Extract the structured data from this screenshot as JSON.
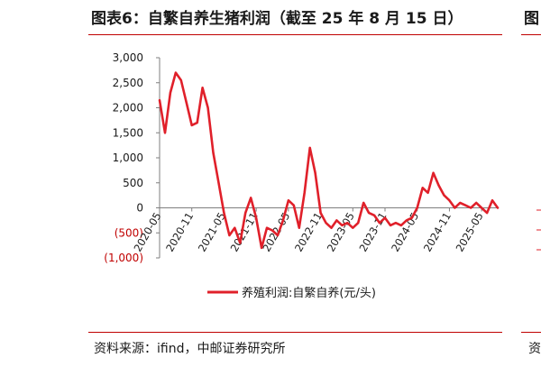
{
  "title": "图表6：自繁自养生猪利润（截至 25 年 8 月 15 日）",
  "next_title_fragment": "图",
  "source": "资料来源：ifind，中邮证券研究所",
  "next_source_fragment": "资",
  "colors": {
    "series": "#e0202a",
    "accent_rule": "#c00000",
    "negative_label": "#c00000",
    "axis": "#7f7f7f",
    "text": "#1a1a1a"
  },
  "chart_data": {
    "type": "line",
    "ylim": [
      -1000,
      3000
    ],
    "grid": false,
    "legend": "bottom",
    "y_ticks": [
      {
        "value": 3000,
        "label": "3,000"
      },
      {
        "value": 2500,
        "label": "2,500"
      },
      {
        "value": 2000,
        "label": "2,000"
      },
      {
        "value": 1500,
        "label": "1,500"
      },
      {
        "value": 1000,
        "label": "1,000"
      },
      {
        "value": 500,
        "label": "500"
      },
      {
        "value": 0,
        "label": "0"
      },
      {
        "value": -500,
        "label": "(500)"
      },
      {
        "value": -1000,
        "label": "(1,000)"
      }
    ],
    "x_ticks": [
      "2020-05",
      "2020-11",
      "2021-05",
      "2021-11",
      "2022-05",
      "2022-11",
      "2023-05",
      "2023-11",
      "2024-05",
      "2024-11",
      "2025-05"
    ],
    "series": [
      {
        "name": "养殖利润:自繁自养(元/头)",
        "x": [
          "2020-05",
          "2020-06",
          "2020-07",
          "2020-08",
          "2020-09",
          "2020-10",
          "2020-11",
          "2020-12",
          "2021-01",
          "2021-02",
          "2021-03",
          "2021-04",
          "2021-05",
          "2021-06",
          "2021-07",
          "2021-08",
          "2021-09",
          "2021-10",
          "2021-11",
          "2021-12",
          "2022-01",
          "2022-02",
          "2022-03",
          "2022-04",
          "2022-05",
          "2022-06",
          "2022-07",
          "2022-08",
          "2022-09",
          "2022-10",
          "2022-11",
          "2022-12",
          "2023-01",
          "2023-02",
          "2023-03",
          "2023-04",
          "2023-05",
          "2023-06",
          "2023-07",
          "2023-08",
          "2023-09",
          "2023-10",
          "2023-11",
          "2023-12",
          "2024-01",
          "2024-02",
          "2024-03",
          "2024-04",
          "2024-05",
          "2024-06",
          "2024-07",
          "2024-08",
          "2024-09",
          "2024-10",
          "2024-11",
          "2024-12",
          "2025-01",
          "2025-02",
          "2025-03",
          "2025-04",
          "2025-05",
          "2025-06",
          "2025-07",
          "2025-08"
        ],
        "values": [
          2150,
          1500,
          2300,
          2700,
          2550,
          2100,
          1650,
          1700,
          2400,
          2000,
          1100,
          500,
          -100,
          -550,
          -400,
          -700,
          -100,
          200,
          -200,
          -800,
          -400,
          -450,
          -550,
          -250,
          150,
          50,
          -400,
          300,
          1200,
          700,
          -100,
          -300,
          -400,
          -250,
          -350,
          -300,
          -400,
          -300,
          100,
          -100,
          -150,
          -300,
          -200,
          -350,
          -300,
          -350,
          -250,
          -200,
          0,
          400,
          300,
          700,
          450,
          250,
          150,
          0,
          100,
          50,
          0,
          100,
          0,
          -100,
          150,
          0
        ]
      }
    ]
  }
}
